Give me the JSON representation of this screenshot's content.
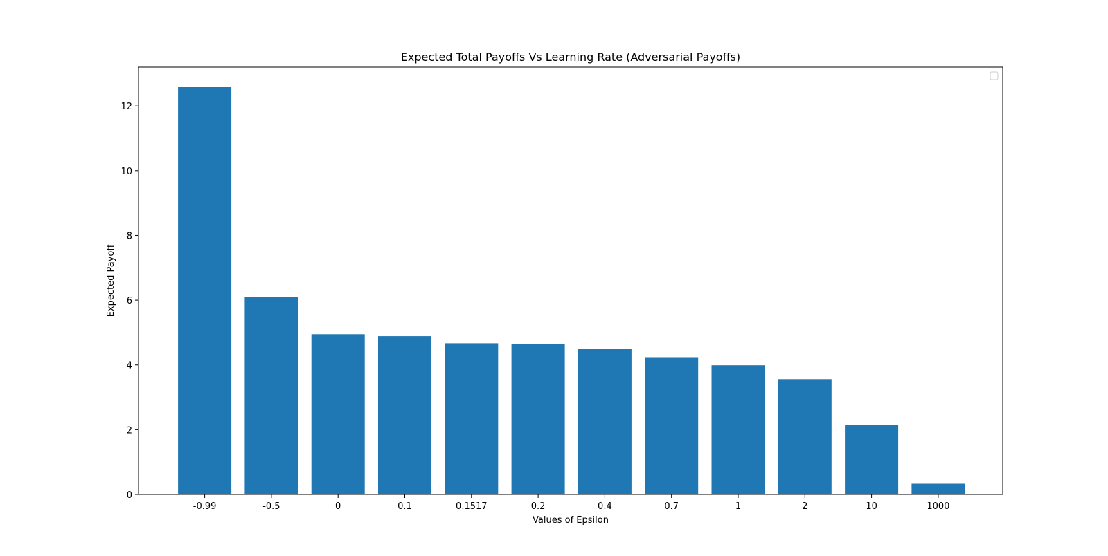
{
  "chart_data": {
    "type": "bar",
    "title": "Expected Total Payoffs Vs Learning Rate (Adversarial Payoffs)",
    "xlabel": "Values of Epsilon",
    "ylabel": "Expected Payoff",
    "categories": [
      "-0.99",
      "-0.5",
      "0",
      "0.1",
      "0.1517",
      "0.2",
      "0.4",
      "0.7",
      "1",
      "2",
      "10",
      "1000"
    ],
    "values": [
      12.58,
      6.09,
      4.95,
      4.89,
      4.67,
      4.65,
      4.5,
      4.24,
      3.99,
      3.56,
      2.14,
      0.33
    ],
    "ylim": [
      0,
      13.2
    ],
    "yticks": [
      0,
      2,
      4,
      6,
      8,
      10,
      12
    ],
    "grid": false,
    "legend": {
      "position": "top-right",
      "entries": []
    },
    "colors": {
      "bar": "#1f77b4",
      "axis": "#000000",
      "legend_border": "#cccccc"
    }
  }
}
